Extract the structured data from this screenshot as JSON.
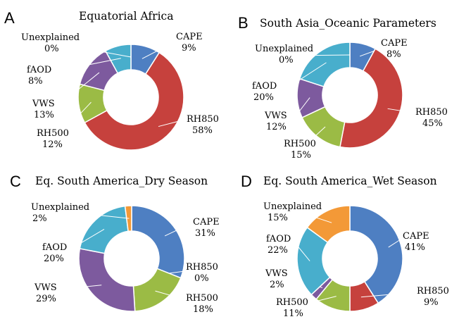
{
  "chart_data": [
    {
      "type": "pie",
      "panel": "A",
      "title": "Equatorial Africa",
      "slices": [
        {
          "name": "CAPE",
          "value": 9,
          "pct": "9%",
          "color": "#4e7fc2"
        },
        {
          "name": "RH850",
          "value": 58,
          "pct": "58%",
          "color": "#c6413d"
        },
        {
          "name": "RH500",
          "value": 12,
          "pct": "12%",
          "color": "#9bbb45"
        },
        {
          "name": "VWS",
          "value": 13,
          "pct": "13%",
          "color": "#7d5a9e"
        },
        {
          "name": "fAOD",
          "value": 8,
          "pct": "8%",
          "color": "#48aecc"
        },
        {
          "name": "Unexplained",
          "value": 0,
          "pct": "0%",
          "color": "#f39937"
        }
      ]
    },
    {
      "type": "pie",
      "panel": "B",
      "title": "South Asia_Oceanic Parameters",
      "slices": [
        {
          "name": "CAPE",
          "value": 8,
          "pct": "8%",
          "color": "#4e7fc2"
        },
        {
          "name": "RH850",
          "value": 45,
          "pct": "45%",
          "color": "#c6413d"
        },
        {
          "name": "RH500",
          "value": 15,
          "pct": "15%",
          "color": "#9bbb45"
        },
        {
          "name": "VWS",
          "value": 12,
          "pct": "12%",
          "color": "#7d5a9e"
        },
        {
          "name": "fAOD",
          "value": 20,
          "pct": "20%",
          "color": "#48aecc"
        },
        {
          "name": "Unexplained",
          "value": 0,
          "pct": "0%",
          "color": "#f39937"
        }
      ]
    },
    {
      "type": "pie",
      "panel": "C",
      "title": "Eq. South America_Dry Season",
      "slices": [
        {
          "name": "CAPE",
          "value": 31,
          "pct": "31%",
          "color": "#4e7fc2"
        },
        {
          "name": "RH850",
          "value": 0,
          "pct": "0%",
          "color": "#c6413d"
        },
        {
          "name": "RH500",
          "value": 18,
          "pct": "18%",
          "color": "#9bbb45"
        },
        {
          "name": "VWS",
          "value": 29,
          "pct": "29%",
          "color": "#7d5a9e"
        },
        {
          "name": "fAOD",
          "value": 20,
          "pct": "20%",
          "color": "#48aecc"
        },
        {
          "name": "Unexplained",
          "value": 2,
          "pct": "2%",
          "color": "#f39937"
        }
      ]
    },
    {
      "type": "pie",
      "panel": "D",
      "title": "Eq. South America_Wet Season",
      "slices": [
        {
          "name": "CAPE",
          "value": 41,
          "pct": "41%",
          "color": "#4e7fc2"
        },
        {
          "name": "RH850",
          "value": 9,
          "pct": "9%",
          "color": "#c6413d"
        },
        {
          "name": "RH500",
          "value": 11,
          "pct": "11%",
          "color": "#9bbb45"
        },
        {
          "name": "VWS",
          "value": 2,
          "pct": "2%",
          "color": "#7d5a9e"
        },
        {
          "name": "fAOD",
          "value": 22,
          "pct": "22%",
          "color": "#48aecc"
        },
        {
          "name": "Unexplained",
          "value": 15,
          "pct": "15%",
          "color": "#f39937"
        }
      ]
    }
  ]
}
